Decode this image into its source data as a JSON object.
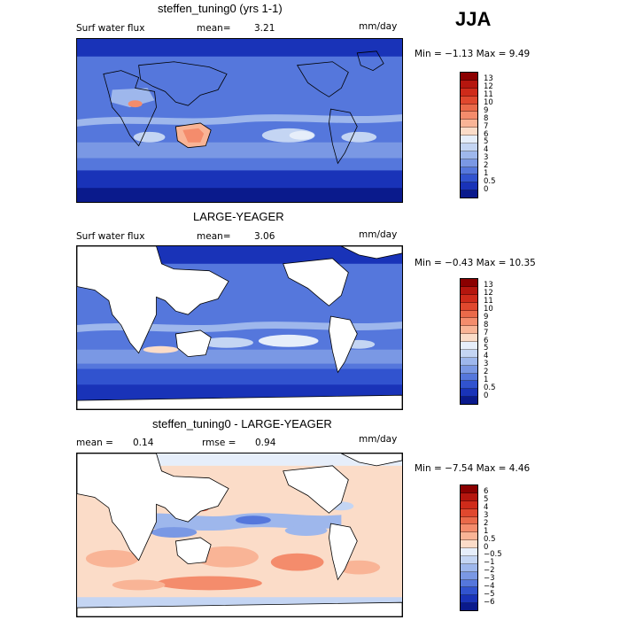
{
  "season": "JJA",
  "panels": [
    {
      "title": "steffen_tuning0 (yrs 1-1)",
      "field": "Surf water flux",
      "mean_label": "mean=",
      "mean_value": "3.21",
      "units": "mm/day",
      "minmax": "Min =  −1.13  Max =    9.49",
      "land_masked": false
    },
    {
      "title": "LARGE-YEAGER",
      "field": "Surf water flux",
      "mean_label": "mean=",
      "mean_value": "3.06",
      "units": "mm/day",
      "minmax": "Min =  −0.43  Max =  10.35",
      "land_masked": true
    },
    {
      "title": "steffen_tuning0 - LARGE-YEAGER",
      "field": "mean =",
      "mean_value_left": "0.14",
      "mean_label": "rmse =",
      "mean_value": "0.94",
      "units": "mm/day",
      "minmax": "Min =  −7.54  Max =    4.46",
      "land_masked": true
    }
  ],
  "colorbar_abs": {
    "labels": [
      "13",
      "12",
      "11",
      "10",
      "9",
      "8",
      "7",
      "6",
      "5",
      "4",
      "3",
      "2",
      "1",
      "0.5",
      "0"
    ],
    "colors": [
      "#8b0000",
      "#b5160e",
      "#cf2b1a",
      "#e0482e",
      "#ea6a4a",
      "#f48c6c",
      "#f9b496",
      "#fbdcc8",
      "#e6eefa",
      "#c4d5f3",
      "#9eb7ec",
      "#7a98e4",
      "#5577dc",
      "#3153cf",
      "#1933b8",
      "#0a1a8c"
    ]
  },
  "colorbar_diff": {
    "labels": [
      "6",
      "5",
      "4",
      "3",
      "2",
      "1",
      "0.5",
      "0",
      "−0.5",
      "−1",
      "−2",
      "−3",
      "−4",
      "−5",
      "−6"
    ],
    "colors": [
      "#8b0000",
      "#b5160e",
      "#cf2b1a",
      "#e0482e",
      "#ea6a4a",
      "#f48c6c",
      "#f9b496",
      "#fbdcc8",
      "#e6eefa",
      "#c4d5f3",
      "#9eb7ec",
      "#7a98e4",
      "#5577dc",
      "#3153cf",
      "#1933b8",
      "#0a1a8c"
    ]
  }
}
